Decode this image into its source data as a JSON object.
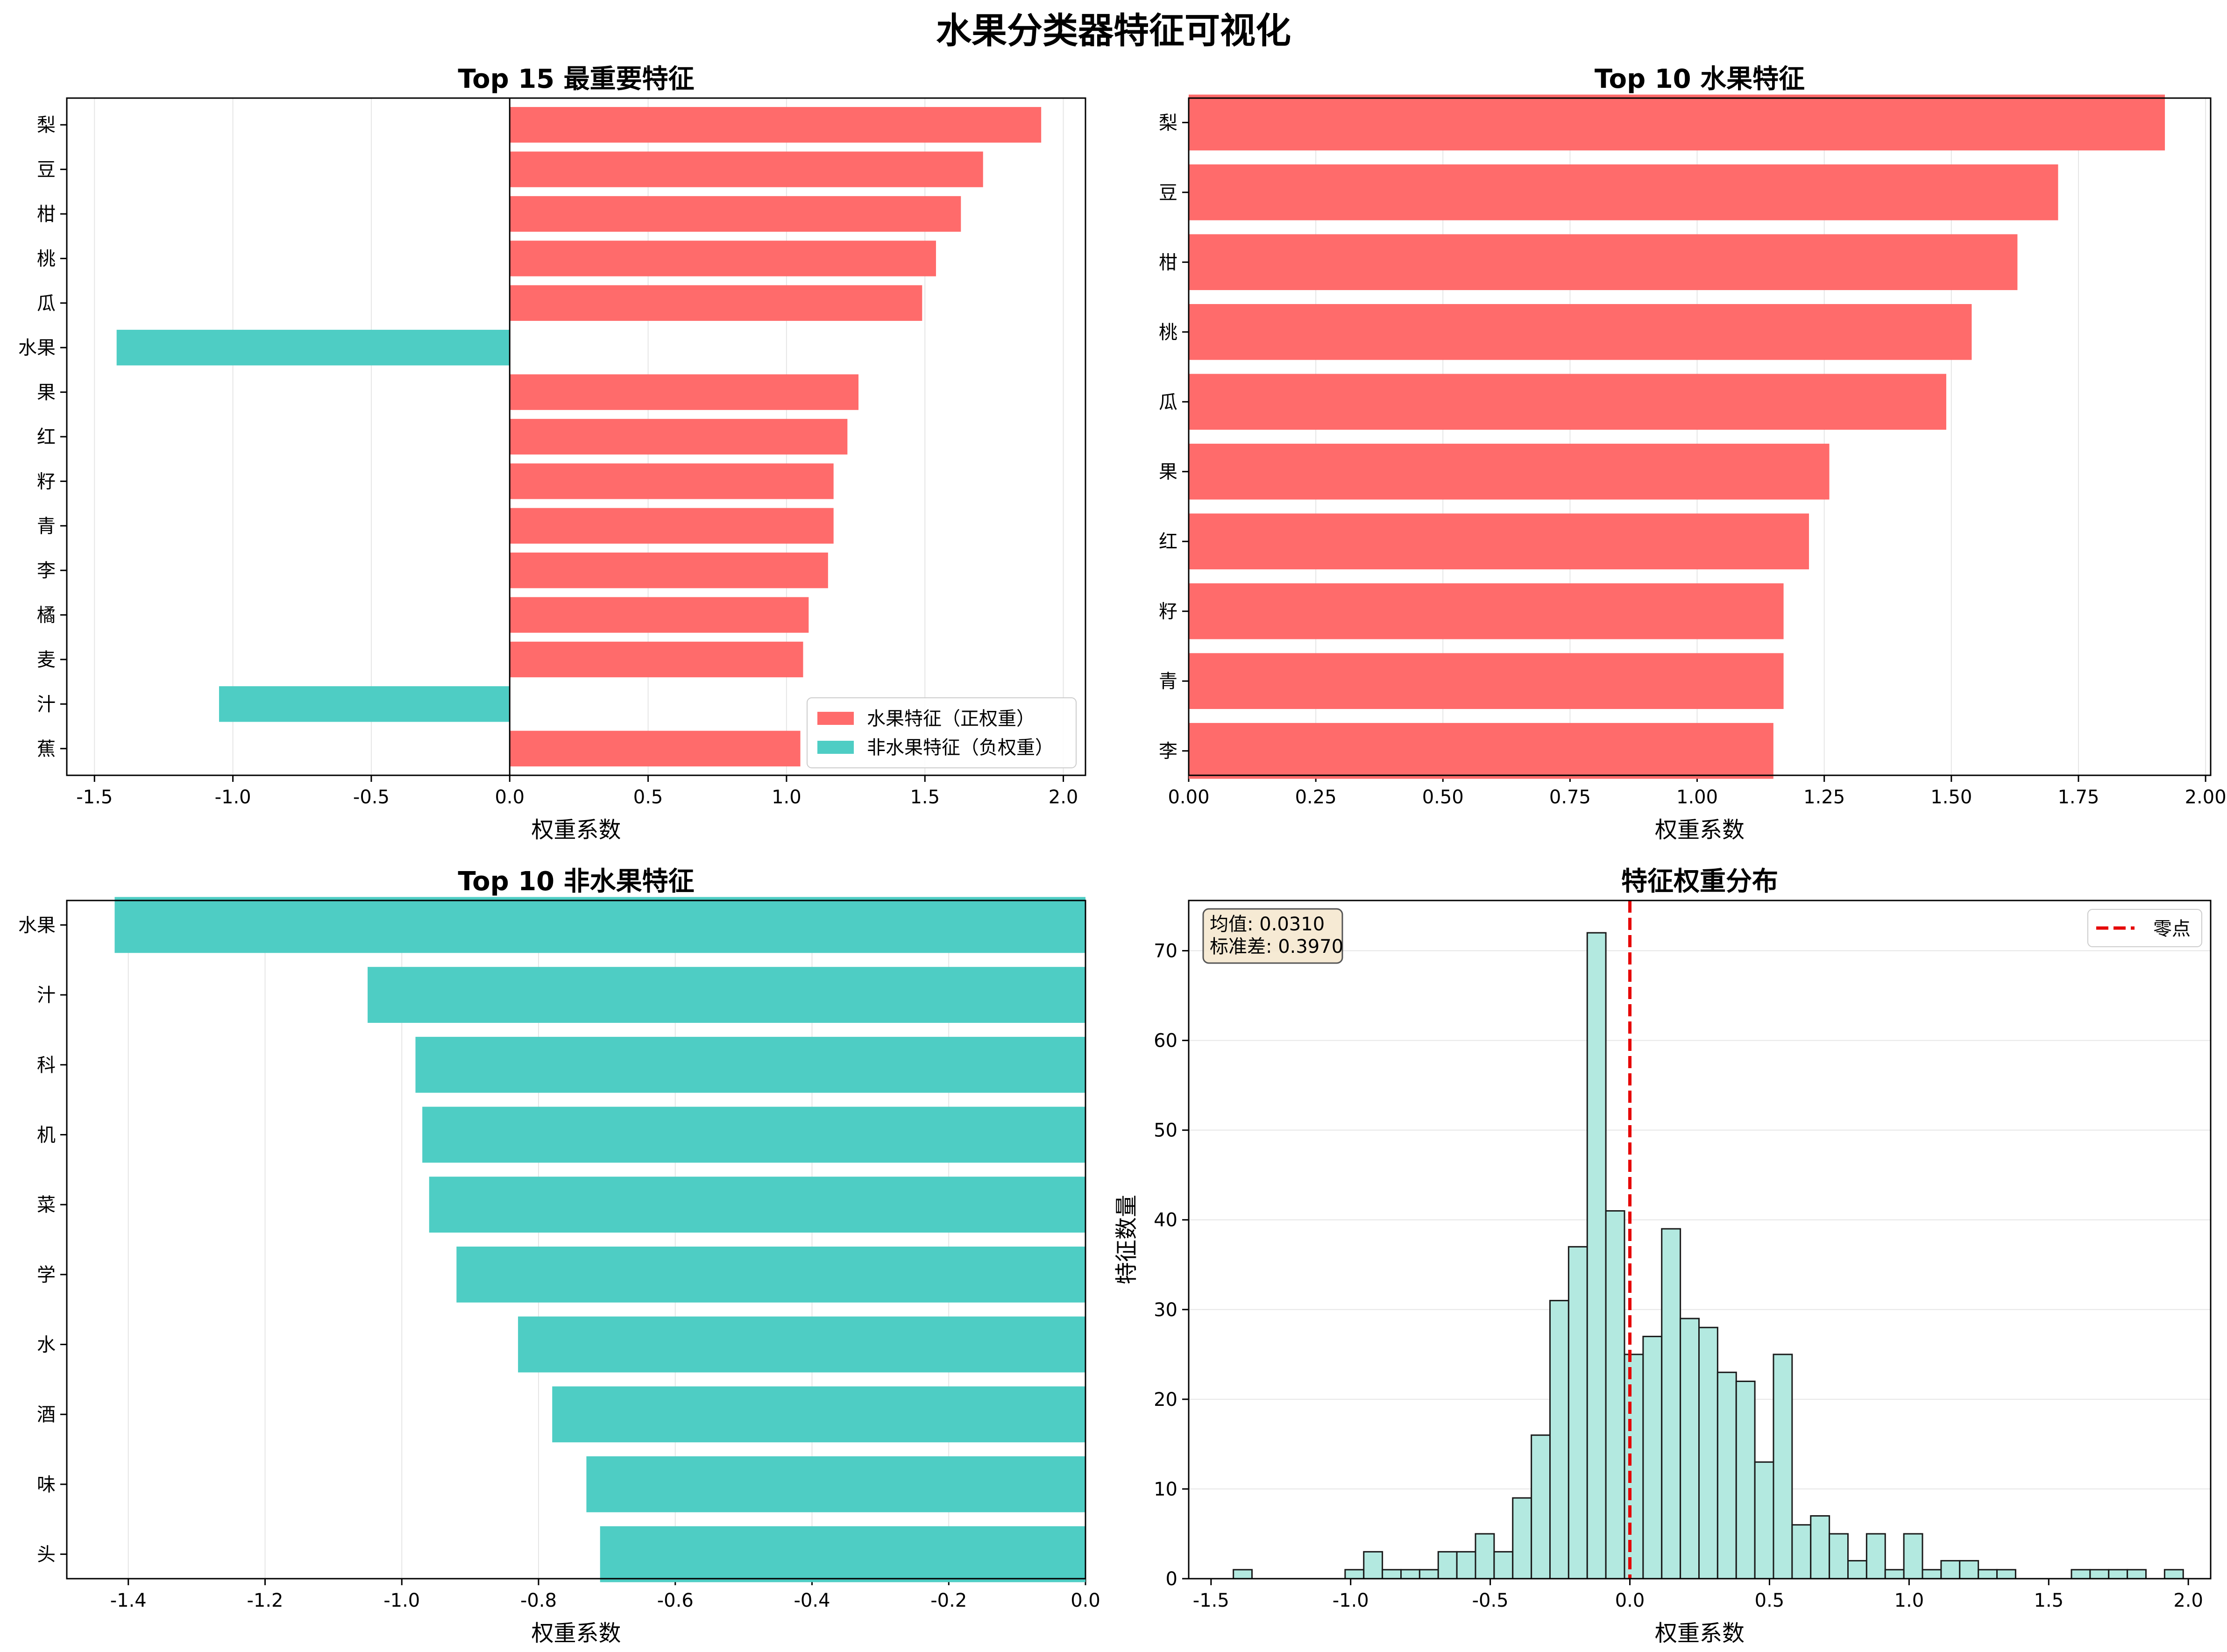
{
  "figure": {
    "title": "水果分类器特征可视化"
  },
  "colors": {
    "positive": "#ff6b6b",
    "negative": "#4ecdc4",
    "hist_fill": "#b3e9e0",
    "hist_edge": "#1b1b1b",
    "zero_line": "#e60000",
    "grid": "#e6e6e6"
  },
  "chart_data": [
    {
      "type": "bar",
      "orientation": "horizontal",
      "title": "Top 15 最重要特征",
      "xlabel": "权重系数",
      "ylabel": "",
      "xlim": [
        -1.6,
        2.08
      ],
      "xticks": [
        -1.5,
        -1.0,
        -0.5,
        0.0,
        0.5,
        1.0,
        1.5,
        2.0
      ],
      "xtick_labels": [
        "-1.5",
        "-1.0",
        "-0.5",
        "0.0",
        "0.5",
        "1.0",
        "1.5",
        "2.0"
      ],
      "grid": "x",
      "legend": {
        "placement": "lower-right",
        "entries": [
          {
            "label": "水果特征（正权重）",
            "color": "#ff6b6b"
          },
          {
            "label": "非水果特征（负权重）",
            "color": "#4ecdc4"
          }
        ]
      },
      "categories": [
        "梨",
        "豆",
        "柑",
        "桃",
        "瓜",
        "水果",
        "果",
        "红",
        "籽",
        "青",
        "李",
        "橘",
        "麦",
        "汁",
        "蕉"
      ],
      "values": [
        1.92,
        1.71,
        1.63,
        1.54,
        1.49,
        -1.42,
        1.26,
        1.22,
        1.17,
        1.17,
        1.15,
        1.08,
        1.06,
        -1.05,
        1.05
      ]
    },
    {
      "type": "bar",
      "orientation": "horizontal",
      "title": "Top 10 水果特征",
      "xlabel": "权重系数",
      "ylabel": "",
      "xlim": [
        0,
        2.01
      ],
      "xticks": [
        0,
        0.25,
        0.5,
        0.75,
        1.0,
        1.25,
        1.5,
        1.75,
        2.0
      ],
      "xtick_labels": [
        "0.00",
        "0.25",
        "0.50",
        "0.75",
        "1.00",
        "1.25",
        "1.50",
        "1.75",
        "2.00"
      ],
      "grid": "x",
      "categories": [
        "梨",
        "豆",
        "柑",
        "桃",
        "瓜",
        "果",
        "红",
        "籽",
        "青",
        "李"
      ],
      "values": [
        1.92,
        1.71,
        1.63,
        1.54,
        1.49,
        1.26,
        1.22,
        1.17,
        1.17,
        1.15
      ]
    },
    {
      "type": "bar",
      "orientation": "horizontal",
      "title": "Top 10 非水果特征",
      "xlabel": "权重系数",
      "ylabel": "",
      "xlim": [
        -1.49,
        0
      ],
      "xticks": [
        -1.4,
        -1.2,
        -1.0,
        -0.8,
        -0.6,
        -0.4,
        -0.2,
        0.0
      ],
      "xtick_labels": [
        "-1.4",
        "-1.2",
        "-1.0",
        "-0.8",
        "-0.6",
        "-0.4",
        "-0.2",
        "0.0"
      ],
      "grid": "x",
      "categories": [
        "水果",
        "汁",
        "科",
        "机",
        "菜",
        "学",
        "水",
        "酒",
        "味",
        "头"
      ],
      "values": [
        -1.42,
        -1.05,
        -0.98,
        -0.97,
        -0.96,
        -0.92,
        -0.83,
        -0.78,
        -0.73,
        -0.71
      ]
    },
    {
      "type": "histogram",
      "title": "特征权重分布",
      "xlabel": "权重系数",
      "ylabel": "特征数量",
      "xlim": [
        -1.58,
        2.08
      ],
      "ylim": [
        0,
        75.6
      ],
      "xticks": [
        -1.5,
        -1.0,
        -0.5,
        0.0,
        0.5,
        1.0,
        1.5,
        2.0
      ],
      "xtick_labels": [
        "-1.5",
        "-1.0",
        "-0.5",
        "0.0",
        "0.5",
        "1.0",
        "1.5",
        "2.0"
      ],
      "yticks": [
        0,
        10,
        20,
        30,
        40,
        50,
        60,
        70
      ],
      "grid": "y",
      "bin_start": -1.42,
      "bin_width": 0.0667,
      "counts": [
        1,
        0,
        0,
        0,
        0,
        0,
        1,
        3,
        1,
        1,
        1,
        3,
        3,
        5,
        3,
        9,
        16,
        31,
        37,
        72,
        41,
        25,
        27,
        39,
        29,
        28,
        23,
        22,
        13,
        25,
        6,
        7,
        5,
        2,
        5,
        1,
        5,
        1,
        2,
        2,
        1,
        1,
        0,
        0,
        0,
        1,
        1,
        1,
        1,
        0,
        1
      ],
      "annotation": "均值: 0.0310\n标准差: 0.3970",
      "annotation_lines": [
        "均值: 0.0310",
        "标准差: 0.3970"
      ],
      "reference_line": {
        "x": 0,
        "label": "零点"
      },
      "legend": {
        "placement": "upper-right",
        "entries": [
          {
            "label": "零点",
            "color": "#e60000"
          }
        ]
      }
    }
  ]
}
